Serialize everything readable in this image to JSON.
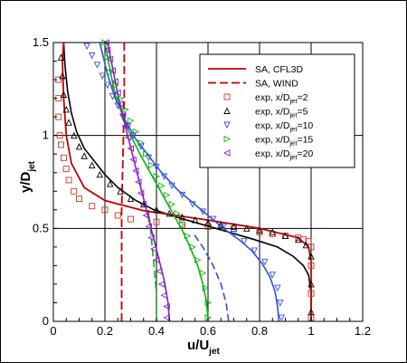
{
  "chart_data": {
    "type": "line",
    "title": "",
    "xlabel": {
      "main": "u/U",
      "sub": "jet"
    },
    "ylabel": {
      "main": "y/D",
      "sub": "jet"
    },
    "xlim": [
      0,
      1.2
    ],
    "ylim": [
      0,
      1.5
    ],
    "xticks": [
      "0",
      "0.2",
      "0.4",
      "0.6",
      "0.8",
      "1",
      "1.2"
    ],
    "yticks": [
      "0",
      "0.5",
      "1",
      "1.5"
    ],
    "grid": true,
    "legend_position": "top-right",
    "colors": {
      "sa_cfl3d": "#c00000",
      "sa_wind": "#c00000",
      "exp2": "#d33020",
      "exp5": "#000000",
      "exp10": "#3050e0",
      "exp15": "#10b010",
      "exp20": "#8020c0"
    },
    "legend": [
      {
        "key": "sa_cfl3d",
        "text": "SA, CFL3D",
        "sub": ""
      },
      {
        "key": "sa_wind",
        "text": "SA, WIND",
        "sub": ""
      },
      {
        "key": "exp2",
        "text": "exp, x/D",
        "sub": "jet",
        "tail": "=2"
      },
      {
        "key": "exp5",
        "text": "exp, x/D",
        "sub": "jet",
        "tail": "=5"
      },
      {
        "key": "exp10",
        "text": "exp, x/D",
        "sub": "jet",
        "tail": "=10"
      },
      {
        "key": "exp15",
        "text": "exp, x/D",
        "sub": "jet",
        "tail": "=15"
      },
      {
        "key": "exp20",
        "text": "exp, x/D",
        "sub": "jet",
        "tail": "=20"
      }
    ],
    "series": [
      {
        "name": "SA, CFL3D",
        "key": "sa_cfl3d",
        "style": "solid",
        "color": "#c00000",
        "x": [
          1.0,
          1.0,
          1.0,
          0.99,
          0.95,
          0.8,
          0.6,
          0.35,
          0.2,
          0.12,
          0.07,
          0.05,
          0.04,
          0.035,
          0.04
        ],
        "y": [
          0.0,
          0.25,
          0.32,
          0.4,
          0.45,
          0.5,
          0.545,
          0.595,
          0.65,
          0.72,
          0.85,
          1.0,
          1.2,
          1.4,
          1.5
        ]
      },
      {
        "name": "SA, WIND",
        "key": "sa_wind",
        "style": "dashed",
        "color": "#c00000",
        "x": [
          0.265,
          0.265,
          0.265,
          0.27,
          0.275,
          0.275
        ],
        "y": [
          0.0,
          0.3,
          0.6,
          0.9,
          1.2,
          1.5
        ]
      },
      {
        "name": "exp, x/Djet=2",
        "key": "exp2",
        "style": "square",
        "color": "#d33020",
        "x": [
          1.0,
          1.0,
          1.0,
          1.0,
          0.99,
          0.97,
          0.95,
          0.9,
          0.85,
          0.8,
          0.7,
          0.6,
          0.5,
          0.4,
          0.3,
          0.25,
          0.2,
          0.15,
          0.1,
          0.08,
          0.06,
          0.05,
          0.04,
          0.03,
          0.025,
          0.02,
          0.02,
          0.02
        ],
        "y": [
          0.02,
          0.15,
          0.3,
          0.4,
          0.43,
          0.44,
          0.45,
          0.46,
          0.47,
          0.48,
          0.5,
          0.51,
          0.52,
          0.535,
          0.55,
          0.57,
          0.6,
          0.62,
          0.66,
          0.7,
          0.76,
          0.82,
          0.88,
          0.95,
          1.0,
          1.1,
          1.2,
          1.3
        ]
      },
      {
        "name": "exp, x/Djet=5",
        "key": "exp5",
        "style": "triangle-up",
        "color": "#000000",
        "x": [
          1.0,
          1.0,
          1.0,
          0.98,
          0.95,
          0.9,
          0.85,
          0.8,
          0.75,
          0.7,
          0.65,
          0.6,
          0.55,
          0.5,
          0.45,
          0.4,
          0.35,
          0.3,
          0.26,
          0.22,
          0.18,
          0.15,
          0.12,
          0.1,
          0.08,
          0.06,
          0.05,
          0.04,
          0.035,
          0.03
        ],
        "y": [
          0.05,
          0.2,
          0.35,
          0.41,
          0.44,
          0.46,
          0.48,
          0.49,
          0.5,
          0.51,
          0.52,
          0.53,
          0.545,
          0.56,
          0.58,
          0.6,
          0.63,
          0.66,
          0.7,
          0.74,
          0.79,
          0.84,
          0.89,
          0.94,
          1.0,
          1.07,
          1.14,
          1.22,
          1.32,
          1.42
        ]
      },
      {
        "name": "exp, x/Djet=10",
        "key": "exp10",
        "style": "triangle-down",
        "color": "#3050e0",
        "x": [
          0.885,
          0.88,
          0.87,
          0.85,
          0.82,
          0.78,
          0.74,
          0.7,
          0.66,
          0.62,
          0.58,
          0.54,
          0.5,
          0.46,
          0.43,
          0.4,
          0.37,
          0.34,
          0.31,
          0.29,
          0.27,
          0.25,
          0.23,
          0.21,
          0.19,
          0.17,
          0.15,
          0.13
        ],
        "y": [
          0.02,
          0.1,
          0.18,
          0.25,
          0.32,
          0.38,
          0.43,
          0.47,
          0.51,
          0.55,
          0.59,
          0.63,
          0.68,
          0.73,
          0.78,
          0.83,
          0.88,
          0.94,
          1.0,
          1.05,
          1.1,
          1.16,
          1.21,
          1.27,
          1.32,
          1.38,
          1.43,
          1.48
        ]
      },
      {
        "name": "exp, x/Djet=15",
        "key": "exp15",
        "style": "triangle-right",
        "color": "#10b010",
        "x": [
          0.6,
          0.6,
          0.59,
          0.58,
          0.56,
          0.54,
          0.52,
          0.5,
          0.48,
          0.46,
          0.44,
          0.42,
          0.4,
          0.38,
          0.36,
          0.34,
          0.32,
          0.3,
          0.28,
          0.26,
          0.24,
          0.22,
          0.21,
          0.2
        ],
        "y": [
          0.02,
          0.1,
          0.18,
          0.26,
          0.33,
          0.4,
          0.46,
          0.52,
          0.58,
          0.63,
          0.68,
          0.73,
          0.78,
          0.84,
          0.9,
          0.96,
          1.02,
          1.08,
          1.14,
          1.2,
          1.27,
          1.34,
          1.42,
          1.5
        ]
      },
      {
        "name": "exp, x/Djet=20",
        "key": "exp20",
        "style": "triangle-left",
        "color": "#8020c0",
        "x": [
          0.44,
          0.44,
          0.43,
          0.42,
          0.41,
          0.4,
          0.39,
          0.38,
          0.37,
          0.36,
          0.35,
          0.34,
          0.33,
          0.32,
          0.31,
          0.3,
          0.29,
          0.28,
          0.27,
          0.26,
          0.25,
          0.24,
          0.23,
          0.22,
          0.21,
          0.205
        ],
        "y": [
          0.02,
          0.08,
          0.14,
          0.2,
          0.27,
          0.33,
          0.39,
          0.45,
          0.51,
          0.57,
          0.63,
          0.69,
          0.75,
          0.81,
          0.87,
          0.93,
          0.99,
          1.05,
          1.11,
          1.17,
          1.23,
          1.29,
          1.35,
          1.41,
          1.46,
          1.5
        ]
      }
    ],
    "model_curves": [
      {
        "key": "cfl3d_x5",
        "color": "#000000",
        "style": "solid",
        "x": [
          1.0,
          1.0,
          0.99,
          0.97,
          0.93,
          0.87,
          0.78,
          0.68,
          0.58,
          0.48,
          0.39,
          0.32,
          0.25,
          0.2,
          0.16,
          0.12,
          0.09,
          0.07,
          0.055,
          0.045,
          0.04
        ],
        "y": [
          0.0,
          0.15,
          0.25,
          0.3,
          0.35,
          0.4,
          0.44,
          0.48,
          0.52,
          0.56,
          0.6,
          0.65,
          0.72,
          0.79,
          0.86,
          0.93,
          1.02,
          1.12,
          1.24,
          1.38,
          1.5
        ]
      },
      {
        "key": "cfl3d_x10",
        "color": "#3050e0",
        "style": "solid",
        "x": [
          0.875,
          0.87,
          0.86,
          0.84,
          0.81,
          0.77,
          0.72,
          0.66,
          0.6,
          0.54,
          0.48,
          0.42,
          0.37,
          0.32,
          0.28,
          0.24,
          0.21,
          0.18
        ],
        "y": [
          0.0,
          0.08,
          0.16,
          0.24,
          0.31,
          0.38,
          0.44,
          0.5,
          0.57,
          0.64,
          0.71,
          0.8,
          0.89,
          0.98,
          1.08,
          1.2,
          1.33,
          1.5
        ]
      },
      {
        "key": "wind_x10",
        "color": "#3050e0",
        "style": "dashed",
        "x": [
          0.68,
          0.67,
          0.65,
          0.62,
          0.58,
          0.54
        ],
        "y": [
          0.0,
          0.1,
          0.2,
          0.3,
          0.4,
          0.48
        ]
      },
      {
        "key": "cfl3d_x15",
        "color": "#10b010",
        "style": "solid",
        "x": [
          0.6,
          0.595,
          0.58,
          0.56,
          0.53,
          0.5,
          0.46,
          0.42,
          0.38,
          0.34,
          0.3,
          0.27,
          0.24,
          0.22,
          0.2
        ],
        "y": [
          0.0,
          0.1,
          0.2,
          0.3,
          0.4,
          0.49,
          0.59,
          0.69,
          0.79,
          0.89,
          1.0,
          1.1,
          1.22,
          1.35,
          1.5
        ]
      },
      {
        "key": "wind_x15",
        "color": "#10b010",
        "style": "dashed",
        "x": [
          0.4,
          0.4,
          0.39,
          0.38,
          0.37
        ],
        "y": [
          0.0,
          0.15,
          0.3,
          0.45,
          0.6
        ]
      },
      {
        "key": "cfl3d_x20",
        "color": "#8020c0",
        "style": "solid",
        "x": [
          0.45,
          0.445,
          0.43,
          0.41,
          0.39,
          0.37,
          0.35,
          0.33,
          0.31,
          0.29,
          0.27,
          0.25,
          0.23,
          0.21
        ],
        "y": [
          0.0,
          0.1,
          0.22,
          0.33,
          0.44,
          0.55,
          0.66,
          0.77,
          0.88,
          0.99,
          1.1,
          1.22,
          1.36,
          1.5
        ]
      }
    ]
  }
}
